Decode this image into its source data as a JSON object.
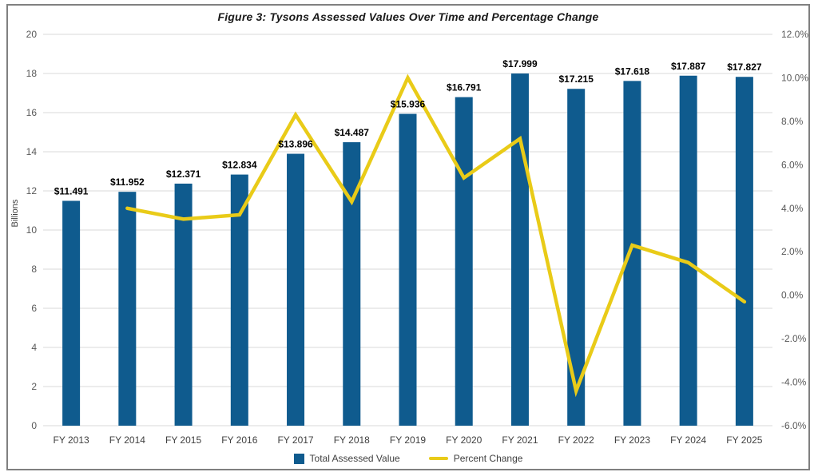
{
  "window": {
    "background": "#ffffff",
    "figure_border_color": "#808080"
  },
  "chart_data": {
    "type": "combo-bar-line",
    "title": "Figure 3: Tysons Assessed Values Over Time and Percentage Change",
    "categories": [
      "FY 2013",
      "FY 2014",
      "FY 2015",
      "FY 2016",
      "FY 2017",
      "FY 2018",
      "FY 2019",
      "FY 2020",
      "FY 2021",
      "FY 2022",
      "FY 2023",
      "FY 2024",
      "FY 2025"
    ],
    "series": [
      {
        "name": "Total Assessed Value",
        "type": "bar",
        "axis": "left",
        "color": "#0F5B8E",
        "values": [
          11.491,
          11.952,
          12.371,
          12.834,
          13.896,
          14.487,
          15.936,
          16.791,
          17.999,
          17.215,
          17.618,
          17.887,
          17.827
        ],
        "value_labels": [
          "$11.491",
          "$11.952",
          "$12.371",
          "$12.834",
          "$13.896",
          "$14.487",
          "$15.936",
          "$16.791",
          "$17.999",
          "$17.215",
          "$17.618",
          "$17.887",
          "$17.827"
        ]
      },
      {
        "name": "Percent Change",
        "type": "line",
        "axis": "right",
        "color": "#E9CB18",
        "values": [
          null,
          4.0,
          3.5,
          3.7,
          8.3,
          4.3,
          10.0,
          5.4,
          7.2,
          -4.4,
          2.3,
          1.5,
          -0.3
        ]
      }
    ],
    "left_axis": {
      "label": "Billions",
      "min": 0,
      "max": 20,
      "step": 2
    },
    "right_axis": {
      "min": -6,
      "max": 12,
      "step": 2,
      "decimals": 1,
      "suffix": "%"
    },
    "grid": {
      "show_horizontal": true,
      "color": "#D9D9D9"
    },
    "legend_position": "bottom",
    "text_colors": {
      "ticks": "#595959",
      "x_labels": "#404040",
      "bar_labels": "#000000"
    }
  }
}
